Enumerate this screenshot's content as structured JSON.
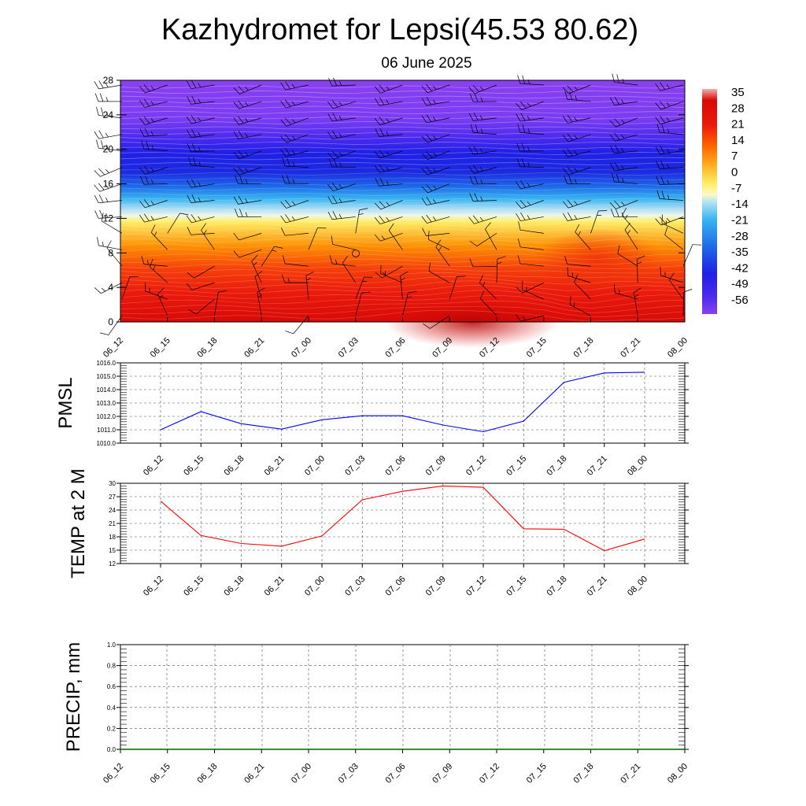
{
  "title": "Kazhydromet for Lepsi(45.53 80.62)",
  "subtitle": "06 June 2025",
  "time_labels": [
    "06_12",
    "06_15",
    "06_18",
    "06_21",
    "07_00",
    "07_03",
    "07_06",
    "07_09",
    "07_12",
    "07_15",
    "07_18",
    "07_21",
    "08_00"
  ],
  "chart_data": [
    {
      "type": "heatmap",
      "name": "vertical cross-section",
      "y_ticks": [
        "0",
        "4",
        "8",
        "12",
        "16",
        "20",
        "24",
        "28"
      ],
      "ylim": [
        0,
        28
      ],
      "x": [
        "06_12",
        "06_15",
        "06_18",
        "06_21",
        "07_00",
        "07_03",
        "07_06",
        "07_09",
        "07_12",
        "07_15",
        "07_18",
        "07_21",
        "08_00"
      ],
      "colorbar": {
        "labels": [
          "35",
          "28",
          "21",
          "14",
          "7",
          "0",
          "-7",
          "-14",
          "-21",
          "-28",
          "-35",
          "-42",
          "-49",
          "-56"
        ],
        "range": [
          -63,
          42
        ]
      },
      "overlay": "wind barbs",
      "colors": {
        "hot": "#e8120c",
        "warm": "#ff8c00",
        "yellow": "#ffee66",
        "cold": "#2a2ae8",
        "top": "#8a3cf0"
      }
    },
    {
      "type": "line",
      "ylabel": "PMSL",
      "y_ticks": [
        "1010.0",
        "1011.0",
        "1012.0",
        "1013.0",
        "1014.0",
        "1015.0",
        "1016.0"
      ],
      "ylim": [
        1010,
        1016
      ],
      "x": [
        "06_12",
        "06_15",
        "06_18",
        "06_21",
        "07_00",
        "07_03",
        "07_06",
        "07_09",
        "07_12",
        "07_15",
        "07_18",
        "07_21",
        "08_00"
      ],
      "series": [
        {
          "values": [
            1011.0,
            1012.35,
            1011.45,
            1011.05,
            1011.75,
            1012.05,
            1012.05,
            1011.35,
            1010.85,
            1011.65,
            1014.55,
            1015.25,
            1015.3
          ],
          "color": "#0000ff"
        }
      ]
    },
    {
      "type": "line",
      "ylabel": "TEMP at 2 M",
      "y_ticks": [
        "12",
        "15",
        "18",
        "21",
        "24",
        "27",
        "30"
      ],
      "ylim": [
        12,
        30
      ],
      "x": [
        "06_12",
        "06_15",
        "06_18",
        "06_21",
        "07_00",
        "07_03",
        "07_06",
        "07_09",
        "07_12",
        "07_15",
        "07_18",
        "07_21",
        "08_00"
      ],
      "series": [
        {
          "values": [
            26.0,
            18.3,
            16.5,
            15.9,
            18.2,
            26.3,
            28.2,
            29.4,
            29.1,
            19.8,
            19.7,
            14.9,
            17.5
          ],
          "color": "#ff0000"
        }
      ]
    },
    {
      "type": "line",
      "ylabel": "PRECIP, mm",
      "y_ticks": [
        "0.0",
        "0.2",
        "0.4",
        "0.6",
        "0.8",
        "1.0"
      ],
      "ylim": [
        0,
        1
      ],
      "x": [
        "06_12",
        "06_15",
        "06_18",
        "06_21",
        "07_00",
        "07_03",
        "07_06",
        "07_09",
        "07_12",
        "07_15",
        "07_18",
        "07_21",
        "08_00"
      ],
      "series": [
        {
          "values": [
            0,
            0,
            0,
            0,
            0,
            0,
            0,
            0,
            0,
            0,
            0,
            0,
            0
          ],
          "color": "#006400"
        }
      ]
    }
  ]
}
